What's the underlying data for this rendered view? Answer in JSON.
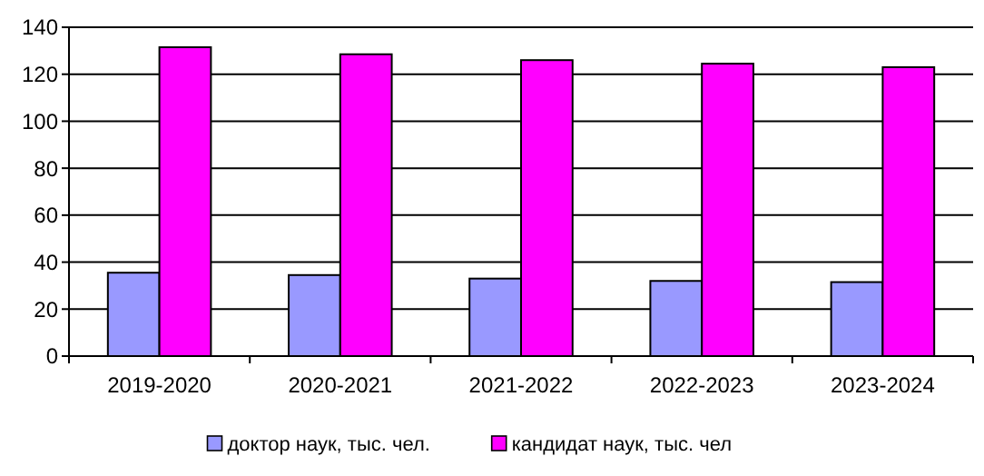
{
  "chart_data": {
    "type": "bar",
    "categories": [
      "2019-2020",
      "2020-2021",
      "2021-2022",
      "2022-2023",
      "2023-2024"
    ],
    "series": [
      {
        "name": "доктор наук, тыс. чел.",
        "color": "#9999ff",
        "values": [
          35.5,
          34.5,
          33,
          32,
          31.5
        ]
      },
      {
        "name": "кандидат наук, тыс. чел",
        "color": "#ff00ff",
        "values": [
          131.5,
          128.5,
          126,
          124.5,
          123
        ]
      }
    ],
    "ylim": [
      0,
      140
    ],
    "yticks": [
      0,
      20,
      40,
      60,
      80,
      100,
      120,
      140
    ],
    "grid": "y",
    "legend": "bottom"
  }
}
